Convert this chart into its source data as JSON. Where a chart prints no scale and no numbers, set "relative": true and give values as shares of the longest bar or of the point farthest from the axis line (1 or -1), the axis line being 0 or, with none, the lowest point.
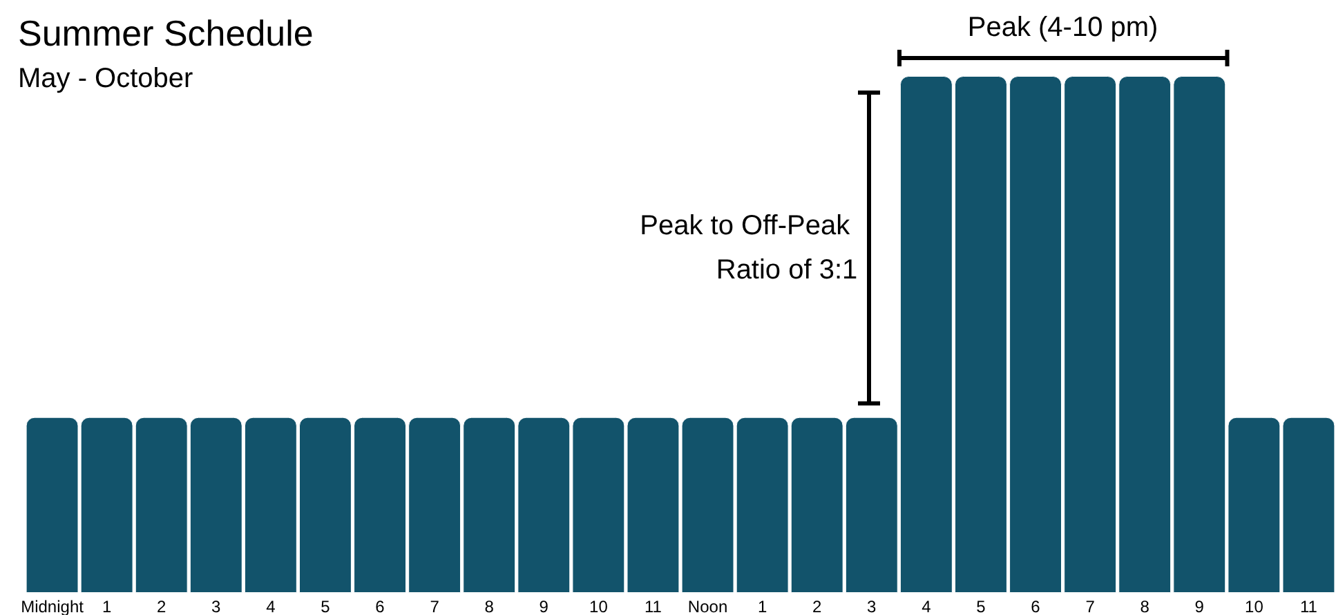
{
  "chart_data": {
    "type": "bar",
    "title": "Summer Schedule",
    "subtitle": "May - October",
    "relative": true,
    "color": "#12536b",
    "categories": [
      "Midnight",
      "1",
      "2",
      "3",
      "4",
      "5",
      "6",
      "7",
      "8",
      "9",
      "10",
      "11",
      "Noon",
      "1",
      "2",
      "3",
      "4",
      "5",
      "6",
      "7",
      "8",
      "9",
      "10",
      "11"
    ],
    "values": [
      0.34,
      0.34,
      0.34,
      0.34,
      0.34,
      0.34,
      0.34,
      0.34,
      0.34,
      0.34,
      0.34,
      0.34,
      0.34,
      0.34,
      0.34,
      0.34,
      1,
      1,
      1,
      1,
      1,
      1,
      0.34,
      0.34
    ],
    "annotations": [
      "Peak (4-10 pm)",
      "Peak to Off-Peak Ratio of 3:1"
    ],
    "grid": false
  }
}
